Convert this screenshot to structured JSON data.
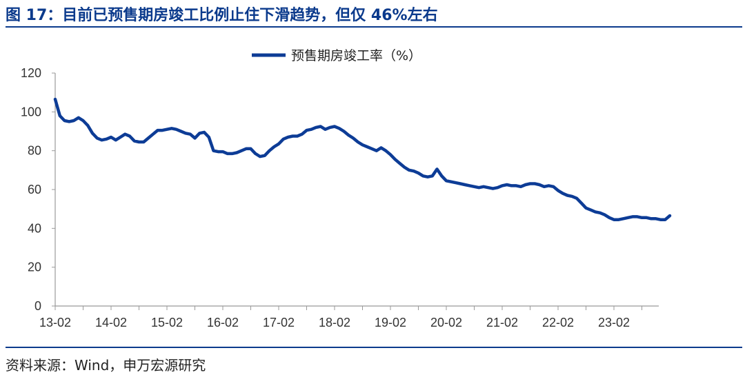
{
  "header": {
    "title": "图 17：目前已预售期房竣工比例止住下滑趋势，但仅 46%左右"
  },
  "footer": {
    "source": "资料来源：Wind，申万宏源研究"
  },
  "colors": {
    "accent": "#0b3a8c",
    "series": "#0d3c96",
    "axis": "#999999"
  },
  "chart_data": {
    "type": "line",
    "title": "",
    "xlabel": "",
    "ylabel": "",
    "ylim": [
      0,
      120
    ],
    "yticks": [
      0,
      20,
      40,
      60,
      80,
      100,
      120
    ],
    "xticks": [
      "13-02",
      "14-02",
      "15-02",
      "16-02",
      "17-02",
      "18-02",
      "19-02",
      "20-02",
      "21-02",
      "22-02",
      "23-02"
    ],
    "grid": false,
    "legend_position": "top-center",
    "series": [
      {
        "name": "预售期房竣工率（%）",
        "x_start": "2013-02",
        "frequency": "monthly",
        "values": [
          106.5,
          98,
          95.5,
          95,
          95.5,
          97,
          95.5,
          93,
          89,
          86.5,
          85.5,
          86,
          87,
          85.5,
          87,
          88.5,
          87.5,
          85,
          84.5,
          84.5,
          86.5,
          88.5,
          90.5,
          90.5,
          91,
          91.5,
          91,
          90,
          89,
          88.5,
          86.5,
          89,
          89.5,
          87,
          80,
          79.5,
          79.5,
          78.5,
          78.5,
          79,
          80,
          81,
          81,
          78.5,
          77,
          77.5,
          80,
          82,
          83.5,
          86,
          87,
          87.5,
          87.5,
          88.5,
          90.5,
          91,
          92,
          92.5,
          91,
          92,
          92.5,
          91.5,
          90,
          88,
          86.5,
          84.5,
          83,
          82,
          81,
          80,
          81.5,
          80,
          78,
          75.5,
          73.5,
          71.5,
          70,
          69.5,
          68.5,
          67,
          66.5,
          67,
          70.5,
          67,
          64.5,
          64,
          63.5,
          63,
          62.5,
          62,
          61.5,
          61,
          61.5,
          61,
          60.5,
          61,
          62,
          62.5,
          62,
          62,
          61.5,
          62.5,
          63,
          63,
          62.5,
          61.5,
          62,
          61.5,
          59.5,
          58,
          57,
          56.5,
          55.5,
          53,
          50.5,
          49.5,
          48.5,
          48,
          47,
          45.5,
          44.5,
          44.5,
          45,
          45.5,
          46,
          46,
          45.5,
          45.5,
          45,
          45,
          44.5,
          44.5,
          46.5
        ]
      }
    ]
  }
}
